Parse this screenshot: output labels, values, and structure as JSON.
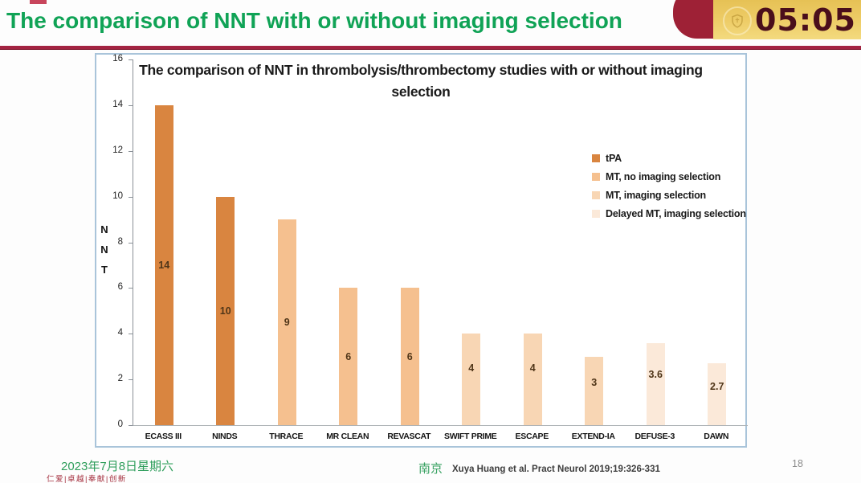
{
  "banner": {
    "title": "The comparison of NNT with or without imaging selection",
    "timer": "05:05",
    "title_color": "#10a356",
    "timer_color": "#4a0e1b",
    "timer_bg": "#eecd68",
    "ribbon_color": "#9e2136",
    "badge_icon": "shield-badge-icon"
  },
  "chart_data": {
    "type": "bar",
    "title": "The comparison of NNT in thrombolysis/thrombectomy studies with or without imaging selection",
    "xlabel": "",
    "ylabel": "NNT",
    "ylabel_letters": [
      "N",
      "N",
      "T"
    ],
    "ylim": [
      0,
      16
    ],
    "yticks": [
      0,
      2,
      4,
      6,
      8,
      10,
      12,
      14,
      16
    ],
    "grid": false,
    "legend_position": "inside-right",
    "categories": [
      "ECASS III",
      "NINDS",
      "THRACE",
      "MR CLEAN",
      "REVASCAT",
      "SWIFT PRIME",
      "ESCAPE",
      "EXTEND-IA",
      "DEFUSE-3",
      "DAWN"
    ],
    "values": [
      14,
      10,
      9,
      6,
      6,
      4,
      4,
      3,
      3.6,
      2.7
    ],
    "value_labels": [
      "14",
      "10",
      "9",
      "6",
      "6",
      "4",
      "4",
      "3",
      "3.6",
      "2.7"
    ],
    "group_index": [
      0,
      0,
      1,
      1,
      1,
      2,
      2,
      2,
      3,
      3
    ],
    "legend": [
      {
        "label": "tPA",
        "color": "#d98540"
      },
      {
        "label": "MT, no imaging selection",
        "color": "#f5c08f"
      },
      {
        "label": "MT, imaging selection",
        "color": "#f8d6b4"
      },
      {
        "label": "Delayed MT, imaging selection",
        "color": "#fbe9d9"
      }
    ]
  },
  "footer": {
    "date": "2023年7月8日星期六",
    "motto": "仁爱|卓越|奉献|创新",
    "city": "南京",
    "citation": "Xuya Huang et al. Pract Neurol 2019;19:326-331",
    "page_number": "18"
  }
}
